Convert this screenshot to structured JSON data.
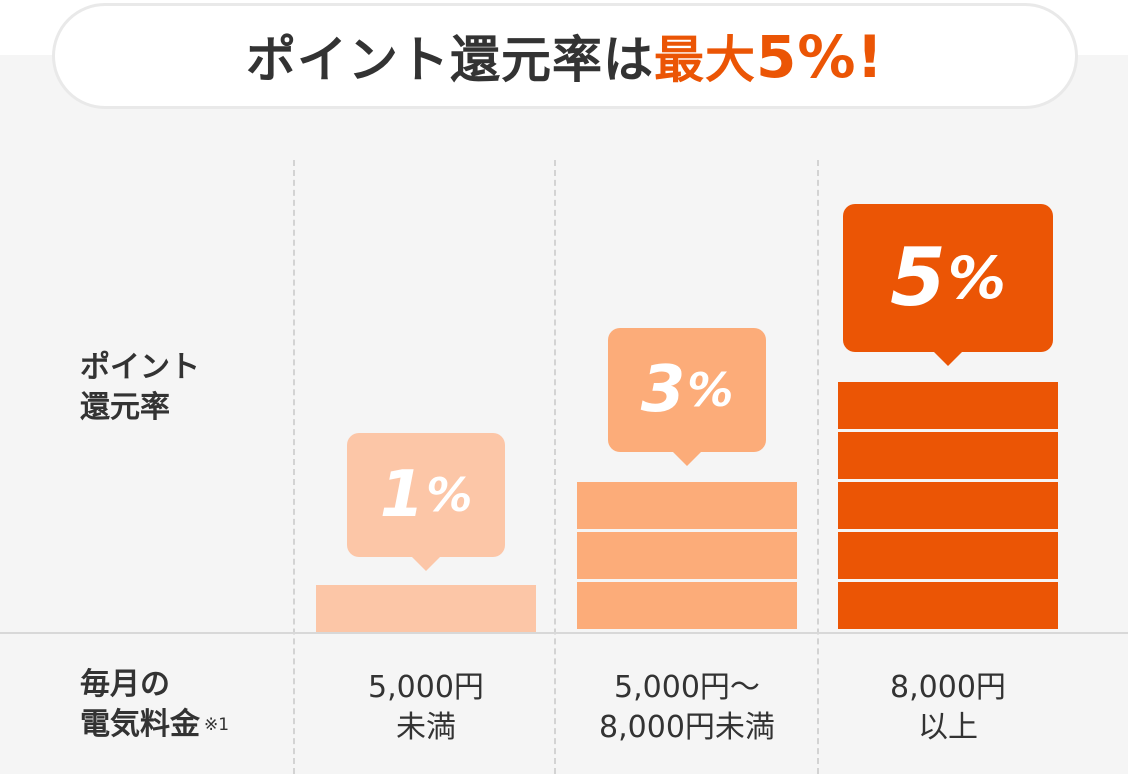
{
  "title": {
    "prefix": "ポイント還元率は",
    "accent": "最大",
    "max_value": "5%!"
  },
  "row_labels": {
    "rate": "ポイント\n還元率",
    "fee": "毎月の\n電気料金",
    "fee_note": "※1"
  },
  "colors": {
    "accent": "#eb5505",
    "light": "#fcc6a7",
    "medium": "#fcac79",
    "strong": "#eb5505",
    "divider": "#ffffff"
  },
  "chart_data": {
    "type": "bar",
    "categories": [
      "5,000円\n未満",
      "5,000円〜\n8,000円未満",
      "8,000円\n以上"
    ],
    "values": [
      1,
      3,
      5
    ],
    "labels": [
      "1%",
      "3%",
      "5%"
    ],
    "ylabel": "ポイント\n還元率",
    "xlabel": "毎月の\n電気料金※1",
    "ylim": [
      0,
      5
    ]
  }
}
